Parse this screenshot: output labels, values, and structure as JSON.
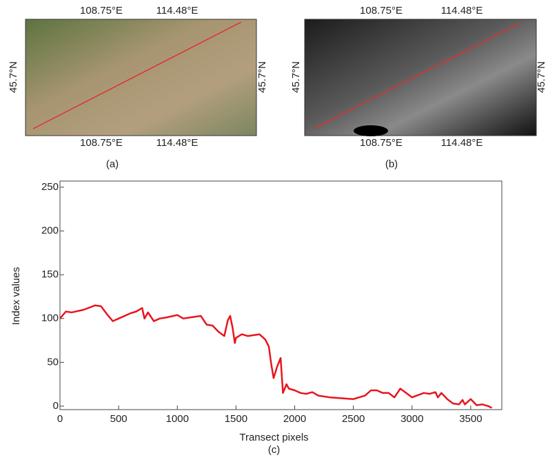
{
  "panels": [
    {
      "label": "(a)",
      "top_ticks": [
        "108.75°E",
        "114.48°E"
      ],
      "bottom_ticks": [
        "108.75°E",
        "114.48°E"
      ],
      "left_label": "45.7°N",
      "right_label": "45.7°N"
    },
    {
      "label": "(b)",
      "top_ticks": [
        "108.75°E",
        "114.48°E"
      ],
      "bottom_ticks": [
        "108.75°E",
        "114.48°E"
      ],
      "left_label": "45.7°N",
      "right_label": "45.7°N"
    }
  ],
  "chart_data": {
    "type": "line",
    "caption": "(c)",
    "xlabel": "Transect pixels",
    "ylabel": "Index values",
    "x": [
      0,
      50,
      100,
      200,
      300,
      350,
      400,
      450,
      500,
      600,
      650,
      700,
      720,
      750,
      800,
      850,
      900,
      1000,
      1050,
      1100,
      1200,
      1250,
      1300,
      1350,
      1400,
      1430,
      1450,
      1470,
      1490,
      1500,
      1550,
      1600,
      1700,
      1750,
      1780,
      1800,
      1820,
      1850,
      1880,
      1900,
      1930,
      1950,
      2000,
      2050,
      2100,
      2150,
      2200,
      2300,
      2400,
      2500,
      2600,
      2650,
      2700,
      2750,
      2800,
      2850,
      2900,
      2950,
      3000,
      3100,
      3150,
      3200,
      3220,
      3250,
      3300,
      3350,
      3400,
      3430,
      3450,
      3500,
      3550,
      3600,
      3650,
      3680
    ],
    "series": [
      {
        "color": "#e8141c",
        "values": [
          100,
          108,
          107,
          110,
          115,
          114,
          105,
          97,
          100,
          106,
          108,
          112,
          100,
          107,
          97,
          100,
          101,
          104,
          100,
          101,
          103,
          93,
          92,
          85,
          80,
          98,
          103,
          90,
          72,
          78,
          82,
          80,
          82,
          76,
          68,
          48,
          32,
          45,
          55,
          15,
          25,
          20,
          18,
          15,
          14,
          16,
          12,
          10,
          9,
          8,
          12,
          18,
          18,
          15,
          15,
          10,
          20,
          15,
          10,
          15,
          14,
          16,
          10,
          15,
          8,
          3,
          2,
          7,
          2,
          8,
          1,
          2,
          0,
          -2
        ]
      }
    ],
    "xlim": [
      0,
      3765
    ],
    "ylim": [
      -4,
      257
    ],
    "xticks": [
      0,
      500,
      1000,
      1500,
      2000,
      2500,
      3000,
      3500
    ],
    "yticks": [
      0,
      50,
      100,
      150,
      200,
      250
    ]
  }
}
